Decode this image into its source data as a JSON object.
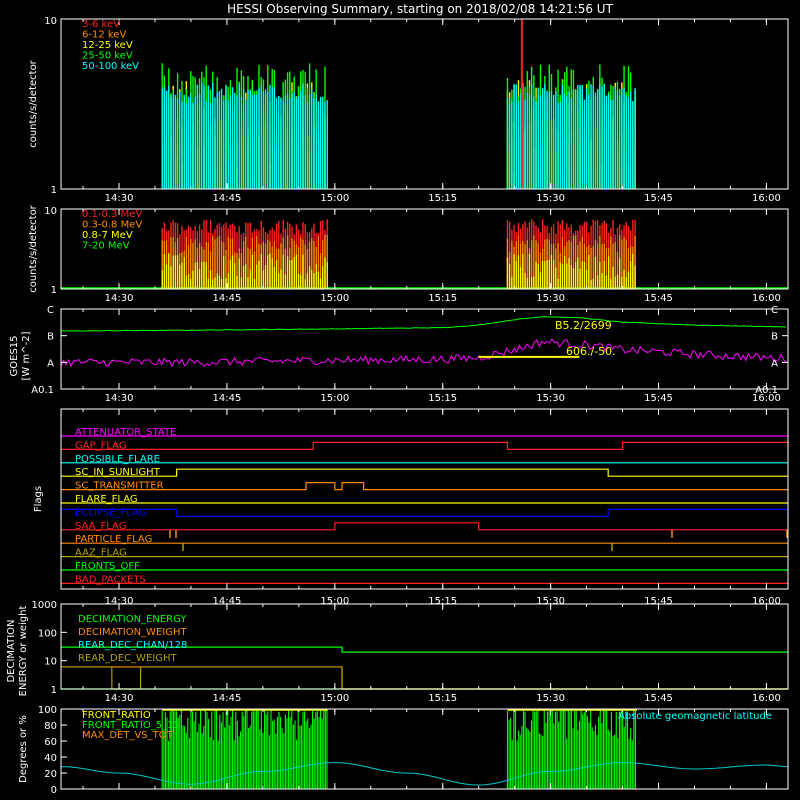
{
  "title": "HESSI Observing Summary, starting on 2018/02/08 14:21:56 UT",
  "time_ticks": [
    "14:30",
    "14:45",
    "15:00",
    "15:15",
    "15:30",
    "15:45",
    "16:00"
  ],
  "colors": {
    "background": "#000000",
    "axes": "#ffffff",
    "red": "#ff2020",
    "orange": "#ff8c00",
    "yellow": "#ffff00",
    "green": "#00ff00",
    "cyan": "#00ffff",
    "magenta": "#ff00ff",
    "blue": "#0000ff",
    "olive": "#b0a000",
    "darkgreen": "#00c000"
  },
  "chart_data": [
    {
      "type": "line",
      "name": "lo-energy",
      "ylabel": "counts/s/detector",
      "yscale": "log",
      "ylim": [
        1,
        10
      ],
      "ytick_labels": [
        "1",
        "10"
      ],
      "legend": [
        {
          "label": "3-6 keV",
          "color": "#ff2020"
        },
        {
          "label": "6-12 keV",
          "color": "#ff8c00"
        },
        {
          "label": "12-25 keV",
          "color": "#ffff00"
        },
        {
          "label": "25-50 keV",
          "color": "#00ff00"
        },
        {
          "label": "50-100 keV",
          "color": "#00ffff"
        }
      ],
      "active_intervals": [
        [
          "14:36",
          "14:59"
        ],
        [
          "15:24",
          "15:42"
        ]
      ],
      "band_levels": [
        {
          "color": "#ff2020",
          "min": 1.0,
          "max": 2.6
        },
        {
          "color": "#ff8c00",
          "min": 1.6,
          "max": 2.6
        },
        {
          "color": "#ffff00",
          "min": 1.0,
          "max": 4.5
        },
        {
          "color": "#00ff00",
          "min": 2.6,
          "max": 5.5
        },
        {
          "color": "#00ffff",
          "min": 3.2,
          "max": 4.2
        }
      ],
      "peak_spikes": [
        {
          "time": "15:26",
          "value": 10
        }
      ]
    },
    {
      "type": "line",
      "name": "hi-energy",
      "ylabel": "counts/s/detector",
      "yscale": "log",
      "ylim": [
        1,
        10
      ],
      "ytick_labels": [
        "1",
        "10"
      ],
      "legend": [
        {
          "label": "0.1-0.3 MeV",
          "color": "#ff2020"
        },
        {
          "label": "0.3-0.8 MeV",
          "color": "#ff8c00"
        },
        {
          "label": "0.8-7 MeV",
          "color": "#ffff00"
        },
        {
          "label": "7-20 MeV",
          "color": "#00ff00"
        }
      ],
      "active_intervals": [
        [
          "14:36",
          "14:59"
        ],
        [
          "15:24",
          "15:42"
        ]
      ],
      "band_levels": [
        {
          "color": "#ff2020",
          "min": 4.8,
          "max": 7.5
        },
        {
          "color": "#ff8c00",
          "min": 2.8,
          "max": 4.8
        },
        {
          "color": "#ffff00",
          "min": 1.3,
          "max": 2.8
        }
      ]
    },
    {
      "type": "line",
      "name": "goes",
      "ylabel": "GOES15",
      "yunit": "[W m^-2]",
      "yscale": "log",
      "class_labels": [
        "A0.1",
        "A",
        "B",
        "C"
      ],
      "series": [
        {
          "name": "long",
          "color": "#00ff00",
          "x": [
            "14:21:56",
            "14:40",
            "15:00",
            "15:15",
            "15:20",
            "15:25",
            "15:29",
            "15:34",
            "15:40",
            "15:50",
            "16:00",
            "16:03"
          ],
          "y": [
            1.5e-07,
            1.6e-07,
            1.8e-07,
            2e-07,
            2.5e-07,
            4e-07,
            5.2e-07,
            4.7e-07,
            3.2e-07,
            2.5e-07,
            2.2e-07,
            2.1e-07
          ]
        },
        {
          "name": "short",
          "color": "#ff00ff",
          "x": [
            "14:21:56",
            "14:40",
            "15:00",
            "15:15",
            "15:20",
            "15:25",
            "15:29",
            "15:35",
            "15:40",
            "15:45",
            "15:50",
            "16:00",
            "16:03"
          ],
          "y": [
            1e-08,
            1e-08,
            1.2e-08,
            1.3e-08,
            1.5e-08,
            3e-08,
            6e-08,
            4.5e-08,
            3e-08,
            2.5e-08,
            2e-08,
            1.5e-08,
            1.4e-08
          ]
        }
      ],
      "annotations": [
        "B5.2/2699",
        "606./-50."
      ],
      "highlight_interval": [
        "15:20",
        "15:34"
      ]
    },
    {
      "type": "line",
      "name": "flags",
      "ylabel": "Flags",
      "flags": [
        {
          "label": "ATTENUATOR_STATE",
          "color": "#ff00ff",
          "on": []
        },
        {
          "label": "GAP_FLAG",
          "color": "#ff2020",
          "on": [
            [
              "14:57",
              "15:24"
            ],
            [
              "15:40",
              "16:03"
            ]
          ]
        },
        {
          "label": "POSSIBLE_FLARE",
          "color": "#00ffff",
          "on": []
        },
        {
          "label": "SC_IN_SUNLIGHT",
          "color": "#ffff00",
          "on": [
            [
              "14:38",
              "15:38"
            ]
          ]
        },
        {
          "label": "SC_TRANSMITTER",
          "color": "#ff8c00",
          "on": [
            [
              "14:56",
              "15:00"
            ],
            [
              "15:01",
              "15:04"
            ]
          ]
        },
        {
          "label": "FLARE_FLAG",
          "color": "#ffff00",
          "on": []
        },
        {
          "label": "ECLIPSE_FLAG",
          "color": "#0000ff",
          "on": [
            [
              "14:21:56",
              "14:38"
            ],
            [
              "15:38",
              "16:03"
            ]
          ]
        },
        {
          "label": "SAA_FLAG",
          "color": "#ff2020",
          "on": [
            [
              "15:00",
              "15:20"
            ]
          ]
        },
        {
          "label": "PARTICLE_FLAG",
          "color": "#ff8c00",
          "on": []
        },
        {
          "label": "AAZ_FLAG",
          "color": "#b0a000",
          "on": []
        },
        {
          "label": "FRONTS_OFF",
          "color": "#00ff00",
          "on": []
        },
        {
          "label": "BAD_PACKETS",
          "color": "#ff2020",
          "on": []
        }
      ]
    },
    {
      "type": "line",
      "name": "decimation",
      "ylabel": "DECIMATION\nENERGY or weight",
      "yscale": "log",
      "ylim": [
        1,
        1000
      ],
      "ytick_labels": [
        "1",
        "10",
        "100",
        "1000"
      ],
      "series": [
        {
          "name": "DECIMATION_ENERGY",
          "color": "#00ff00",
          "steps": [
            [
              "14:21:56",
              1
            ]
          ]
        },
        {
          "name": "DECIMATION_WEIGHT",
          "color": "#ff8c00",
          "steps": [
            [
              "14:21:56",
              6
            ],
            [
              "15:01",
              1
            ]
          ]
        },
        {
          "name": "REAR_DEC_CHAN/128",
          "color": "#00ff00",
          "steps": [
            [
              "14:21:56",
              30
            ],
            [
              "15:01",
              20
            ]
          ]
        },
        {
          "name": "REAR_DEC_WEIGHT",
          "color": "#b0a000",
          "steps": [
            [
              "14:21:56",
              6
            ],
            [
              "14:29",
              1
            ],
            [
              "14:33",
              6
            ],
            [
              "15:01",
              1
            ]
          ]
        }
      ]
    },
    {
      "type": "line",
      "name": "ratios",
      "ylabel": "Degrees or %",
      "ylim": [
        0,
        100
      ],
      "ytick_labels": [
        "0",
        "20",
        "40",
        "60",
        "80",
        "100"
      ],
      "legend": [
        {
          "label": "FRONT_RATIO",
          "color": "#ffff00"
        },
        {
          "label": "FRONT_RATIO_5_15",
          "color": "#00ff00"
        },
        {
          "label": "MAX_DET_VS_TOT",
          "color": "#ff8c00"
        }
      ],
      "annotation": "Absolute geomagnetic latitude",
      "active_intervals": [
        [
          "14:36",
          "14:59"
        ],
        [
          "15:24",
          "15:42"
        ]
      ],
      "latitude_curve": {
        "color": "#00c8c8",
        "x": [
          "14:21:56",
          "14:30",
          "14:40",
          "14:50",
          "15:00",
          "15:10",
          "15:20",
          "15:30",
          "15:40",
          "15:50",
          "16:00",
          "16:03"
        ],
        "y": [
          28,
          20,
          6,
          22,
          33,
          20,
          5,
          22,
          33,
          25,
          30,
          28
        ]
      }
    }
  ]
}
